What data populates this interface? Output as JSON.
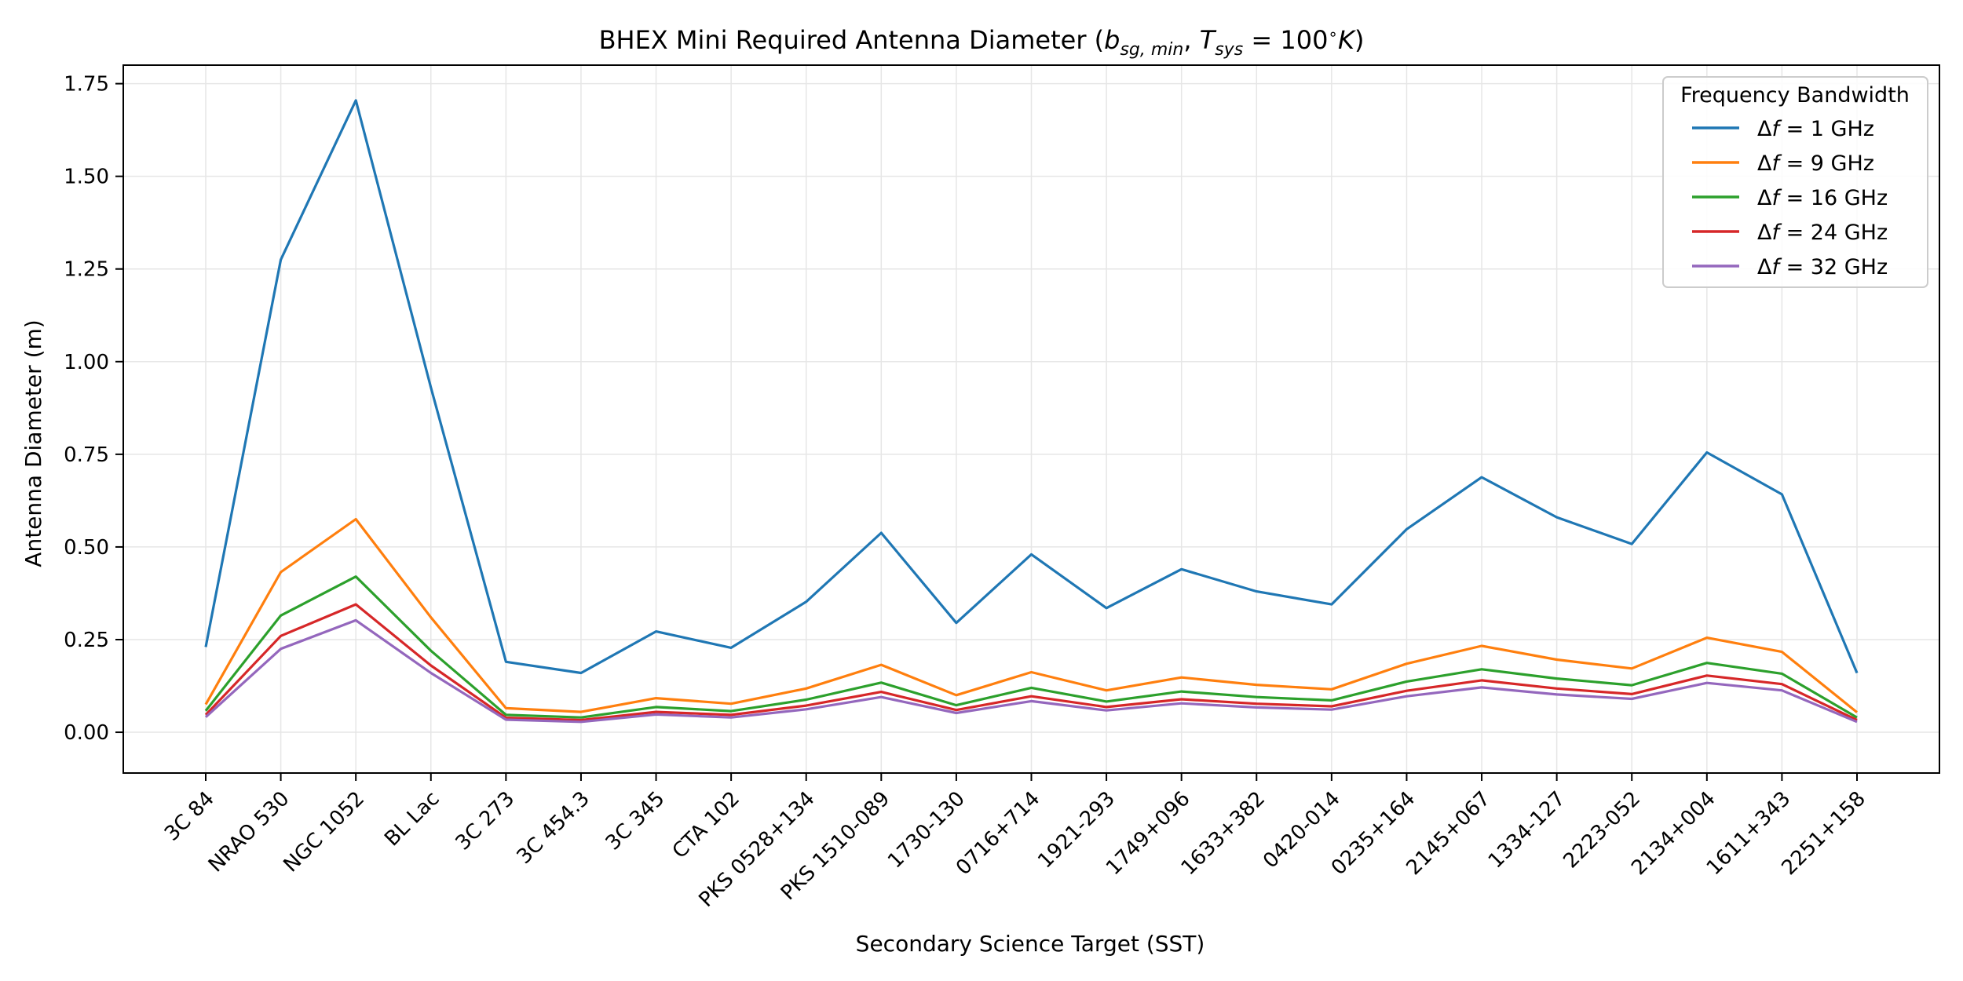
{
  "chart_data": {
    "type": "line",
    "title_prefix": "BHEX Mini Required Antenna Diameter (",
    "title_math": {
      "b": "b",
      "b_sub": "sg, min",
      "comma": ", ",
      "T": "T",
      "T_sub": "sys",
      "equals": " = 100",
      "degree": "∘",
      "K": "K"
    },
    "title_suffix": ")",
    "xlabel": "Secondary Science Target (SST)",
    "ylabel": "Antenna Diameter (m)",
    "categories": [
      "3C 84",
      "NRAO 530",
      "NGC 1052",
      "BL Lac",
      "3C 273",
      "3C 454.3",
      "3C 345",
      "CTA 102",
      "PKS 0528+134",
      "PKS 1510-089",
      "1730-130",
      "0716+714",
      "1921-293",
      "1749+096",
      "1633+382",
      "0420-014",
      "0235+164",
      "2145+067",
      "1334-127",
      "2223-052",
      "2134+004",
      "1611+343",
      "2251+158"
    ],
    "ylim": [
      -0.11,
      1.8
    ],
    "yticks": [
      0.0,
      0.25,
      0.5,
      0.75,
      1.0,
      1.25,
      1.5,
      1.75
    ],
    "ytick_labels": [
      "0.00",
      "0.25",
      "0.50",
      "0.75",
      "1.00",
      "1.25",
      "1.50",
      "1.75"
    ],
    "grid": true,
    "legend_title": "Frequency Bandwidth",
    "legend_position": "top-right",
    "series": [
      {
        "name": "1 GHz",
        "prefix": "Δ",
        "f": "f",
        "eq": " = ",
        "color": "#1f77b4",
        "values": [
          0.23,
          1.275,
          1.705,
          0.93,
          0.19,
          0.16,
          0.272,
          0.228,
          0.352,
          0.538,
          0.295,
          0.48,
          0.335,
          0.44,
          0.38,
          0.345,
          0.548,
          0.688,
          0.58,
          0.508,
          0.755,
          0.642,
          0.16
        ]
      },
      {
        "name": "9 GHz",
        "prefix": "Δ",
        "f": "f",
        "eq": " = ",
        "color": "#ff7f0e",
        "values": [
          0.075,
          0.432,
          0.575,
          0.31,
          0.065,
          0.055,
          0.092,
          0.077,
          0.118,
          0.182,
          0.1,
          0.162,
          0.113,
          0.148,
          0.128,
          0.116,
          0.185,
          0.233,
          0.196,
          0.172,
          0.255,
          0.217,
          0.054
        ]
      },
      {
        "name": "16 GHz",
        "prefix": "Δ",
        "f": "f",
        "eq": " = ",
        "color": "#2ca02c",
        "values": [
          0.058,
          0.315,
          0.42,
          0.22,
          0.047,
          0.04,
          0.068,
          0.057,
          0.088,
          0.134,
          0.073,
          0.12,
          0.083,
          0.11,
          0.095,
          0.086,
          0.137,
          0.17,
          0.145,
          0.127,
          0.187,
          0.158,
          0.04
        ]
      },
      {
        "name": "24 GHz",
        "prefix": "Δ",
        "f": "f",
        "eq": " = ",
        "color": "#d62728",
        "values": [
          0.047,
          0.26,
          0.345,
          0.18,
          0.039,
          0.033,
          0.055,
          0.047,
          0.072,
          0.109,
          0.06,
          0.097,
          0.068,
          0.089,
          0.077,
          0.07,
          0.112,
          0.14,
          0.118,
          0.103,
          0.153,
          0.13,
          0.033
        ]
      },
      {
        "name": "32 GHz",
        "prefix": "Δ",
        "f": "f",
        "eq": " = ",
        "color": "#9467bd",
        "values": [
          0.041,
          0.225,
          0.302,
          0.16,
          0.034,
          0.028,
          0.048,
          0.04,
          0.062,
          0.095,
          0.052,
          0.084,
          0.059,
          0.078,
          0.067,
          0.061,
          0.097,
          0.121,
          0.102,
          0.09,
          0.133,
          0.113,
          0.028
        ]
      }
    ]
  }
}
